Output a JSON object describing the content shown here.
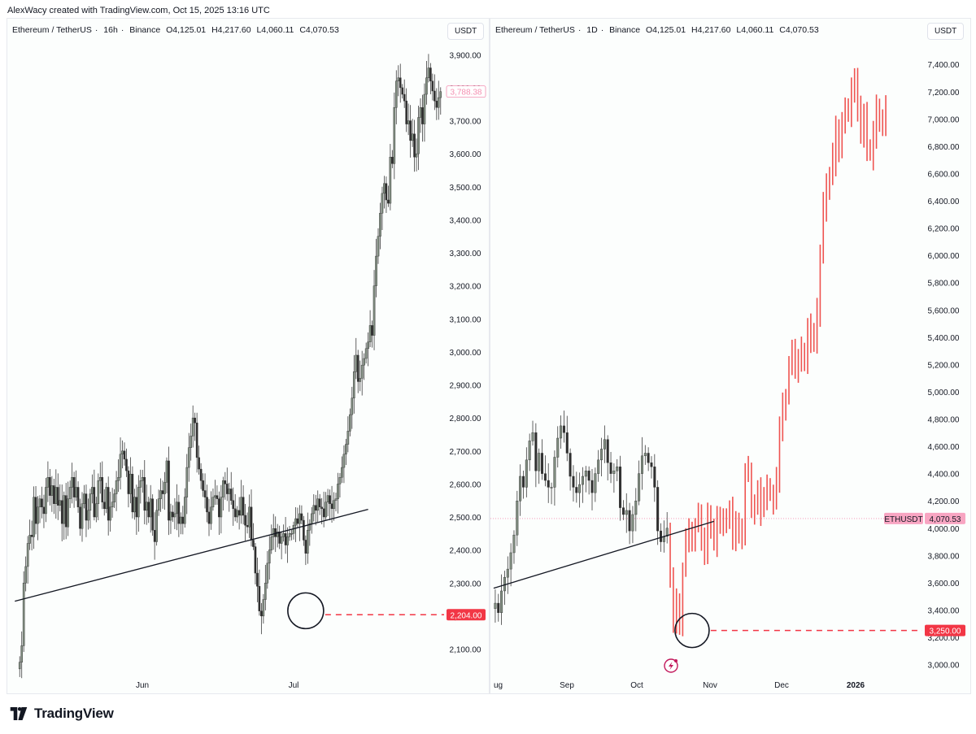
{
  "header": {
    "credit": "AlexWacy created with TradingView.com, Oct 15, 2025 13:16 UTC"
  },
  "footer": {
    "brand": "TradingView"
  },
  "colors": {
    "up": "#4f4f4f",
    "down": "#4f4f4f",
    "projection": "#ef5350",
    "accent_red": "#f23645",
    "label_pink": "#f48fb1"
  },
  "chart_data": [
    {
      "type": "candlestick",
      "symbol": "Ethereum / TetherUS",
      "interval": "16h",
      "exchange": "Binance",
      "ohlc_header": {
        "open": "O4,125.01",
        "high": "H4,217.60",
        "low": "L4,060.11",
        "close": "C4,070.53"
      },
      "currency_button": "USDT",
      "ylim": [
        2020,
        3945
      ],
      "y_ticks": [
        "3,900.00",
        "3,800.00",
        "3,700.00",
        "3,600.00",
        "3,500.00",
        "3,400.00",
        "3,300.00",
        "3,200.00",
        "3,100.00",
        "3,000.00",
        "2,900.00",
        "2,800.00",
        "2,700.00",
        "2,600.00",
        "2,500.00",
        "2,400.00",
        "2,300.00",
        "2,200.00",
        "2,100.00"
      ],
      "x_ticks": [
        "Jun",
        "Jul"
      ],
      "price_labels": {
        "current": "3,788.38",
        "level": "2,204.00"
      },
      "annotations": {
        "trendline": {
          "from": [
            0,
            2245
          ],
          "to": [
            173,
            2523
          ]
        },
        "circled_low": {
          "x": 142,
          "y": 2216
        },
        "support_level": 2204
      },
      "series_close": [
        2060,
        2110,
        2300,
        2350,
        2420,
        2445,
        2440,
        2560,
        2480,
        2530,
        2555,
        2530,
        2510,
        2590,
        2620,
        2565,
        2595,
        2540,
        2590,
        2535,
        2550,
        2480,
        2565,
        2470,
        2555,
        2590,
        2620,
        2560,
        2590,
        2530,
        2465,
        2540,
        2570,
        2490,
        2520,
        2570,
        2590,
        2500,
        2540,
        2610,
        2620,
        2545,
        2525,
        2590,
        2490,
        2530,
        2545,
        2570,
        2610,
        2620,
        2690,
        2700,
        2675,
        2640,
        2570,
        2630,
        2515,
        2560,
        2500,
        2590,
        2610,
        2620,
        2520,
        2545,
        2500,
        2555,
        2460,
        2425,
        2520,
        2555,
        2580,
        2570,
        2605,
        2670,
        2490,
        2515,
        2500,
        2510,
        2545,
        2480,
        2500,
        2480,
        2560,
        2650,
        2710,
        2745,
        2800,
        2785,
        2680,
        2645,
        2610,
        2580,
        2560,
        2515,
        2480,
        2530,
        2560,
        2565,
        2555,
        2500,
        2560,
        2610,
        2600,
        2570,
        2585,
        2550,
        2525,
        2500,
        2520,
        2505,
        2560,
        2505,
        2475,
        2470,
        2530,
        2430,
        2410,
        2330,
        2290,
        2215,
        2200,
        2250,
        2300,
        2360,
        2400,
        2440,
        2465,
        2440,
        2455,
        2420,
        2440,
        2450,
        2415,
        2440,
        2450,
        2450,
        2475,
        2495,
        2480,
        2510,
        2490,
        2430,
        2390,
        2460,
        2480,
        2510,
        2535,
        2520,
        2555,
        2530,
        2525,
        2500,
        2545,
        2565,
        2540,
        2525,
        2550,
        2555,
        2600,
        2620,
        2650,
        2690,
        2720,
        2760,
        2810,
        2860,
        2940,
        2990,
        2910,
        2920,
        2960,
        2980,
        3010,
        3030,
        3080,
        3050,
        3200,
        3290,
        3350,
        3420,
        3480,
        3510,
        3460,
        3450,
        3590,
        3570,
        3740,
        3820,
        3830,
        3800,
        3780,
        3760,
        3690,
        3700,
        3640,
        3660,
        3590,
        3600,
        3710,
        3740,
        3690,
        3780,
        3830,
        3860,
        3820,
        3790,
        3760,
        3740,
        3770,
        3788
      ]
    },
    {
      "type": "line_projection",
      "symbol": "Ethereum / TetherUS",
      "interval": "1D",
      "exchange": "Binance",
      "ohlc_header": {
        "open": "O4,125.01",
        "high": "H4,217.60",
        "low": "L4,060.11",
        "close": "C4,070.53"
      },
      "currency_button": "USDT",
      "ylim": [
        2920,
        7580
      ],
      "y_ticks": [
        "7,400.00",
        "7,200.00",
        "7,000.00",
        "6,800.00",
        "6,600.00",
        "6,400.00",
        "6,200.00",
        "6,000.00",
        "5,800.00",
        "5,600.00",
        "5,400.00",
        "5,200.00",
        "5,000.00",
        "4,800.00",
        "4,600.00",
        "4,400.00",
        "4,200.00",
        "4,000.00",
        "3,800.00",
        "3,600.00",
        "3,400.00",
        "3,200.00",
        "3,000.00"
      ],
      "x_ticks": [
        "ug",
        "Sep",
        "Oct",
        "Nov",
        "Dec",
        "2026"
      ],
      "price_labels": {
        "symbol": "ETHUSDT",
        "current": "4,070.53",
        "level": "3,250.00"
      },
      "annotations": {
        "trendline": {
          "from": [
            0,
            3560
          ],
          "to": [
            70,
            4050
          ]
        },
        "circled_low": {
          "x": 63,
          "y": 3250
        },
        "support_level": 3250
      },
      "history_close": [
        3450,
        3380,
        3540,
        3640,
        3700,
        3820,
        3950,
        4200,
        4380,
        4300,
        4500,
        4640,
        4700,
        4420,
        4550,
        4400,
        4350,
        4300,
        4300,
        4520,
        4660,
        4750,
        4700,
        4550,
        4380,
        4300,
        4260,
        4320,
        4380,
        4420,
        4350,
        4260,
        4400,
        4500,
        4580,
        4650,
        4480,
        4400,
        4420,
        4450,
        4150,
        4100,
        4130,
        3980,
        4100,
        4200,
        4400,
        4530,
        4550,
        4480,
        4450,
        4300,
        3980,
        3900,
        3940,
        4000
      ],
      "projection_close": [
        3640,
        3300,
        3430,
        3280,
        3690,
        3920,
        3970,
        3880,
        4020,
        4080,
        3940,
        3860,
        4100,
        3990,
        3880,
        4110,
        4080,
        4020,
        4080,
        4120,
        3900,
        4070,
        3980,
        3970,
        4380,
        4400,
        4200,
        4150,
        4260,
        4140,
        4180,
        4300,
        4250,
        4200,
        4350,
        4700,
        4900,
        4960,
        5200,
        5300,
        5150,
        5250,
        5300,
        5200,
        5450,
        5400,
        5350,
        5600,
        6000,
        6350,
        6500,
        6600,
        6700,
        6900,
        6800,
        7000,
        7100,
        7050,
        7200,
        7250,
        7100,
        6900,
        7000,
        6800,
        6750,
        6900,
        7100,
        7000,
        6950,
        7100
      ]
    }
  ]
}
